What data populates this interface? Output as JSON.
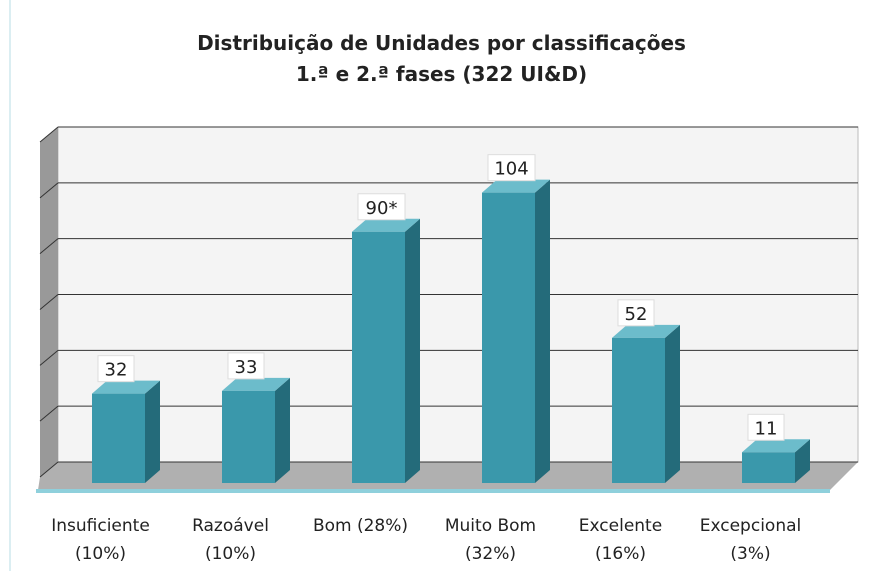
{
  "chart_data": {
    "type": "bar3d",
    "title": "Distribuição de Unidades por classificações\n1.ª e 2.ª fases (322 UI&D)",
    "categories": [
      "Insuficiente\n(10%)",
      "Razoável\n(10%)",
      "Bom (28%)",
      "Muito Bom\n(32%)",
      "Excelente\n(16%)",
      "Excepcional\n(3%)"
    ],
    "values": [
      32,
      33,
      90,
      104,
      52,
      11
    ],
    "value_labels": [
      "32",
      "33",
      "90*",
      "104",
      "52",
      "11"
    ],
    "color": "#3a98ab",
    "ylim": [
      0,
      120
    ],
    "yticks": [
      0,
      20,
      40,
      60,
      80,
      100,
      120
    ],
    "grid": true
  }
}
